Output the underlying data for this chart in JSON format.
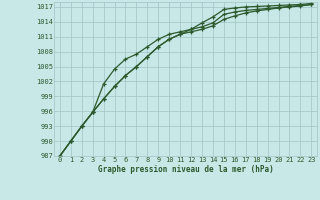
{
  "background_color": "#c8e8e8",
  "grid_color": "#a0c4c4",
  "line_color": "#2d5a2d",
  "marker_color": "#2d5a2d",
  "text_color": "#2d5a2d",
  "xlabel": "Graphe pression niveau de la mer (hPa)",
  "ylim": [
    987,
    1018
  ],
  "xlim": [
    0,
    23
  ],
  "yticks": [
    987,
    990,
    993,
    996,
    999,
    1002,
    1005,
    1008,
    1011,
    1014,
    1017
  ],
  "xticks": [
    0,
    1,
    2,
    3,
    4,
    5,
    6,
    7,
    8,
    9,
    10,
    11,
    12,
    13,
    14,
    15,
    16,
    17,
    18,
    19,
    20,
    21,
    22,
    23
  ],
  "series": [
    [
      987.0,
      990.0,
      993.0,
      995.8,
      998.5,
      1001.0,
      1003.2,
      1005.0,
      1007.0,
      1009.0,
      1010.5,
      1011.5,
      1012.0,
      1012.5,
      1013.2,
      1014.5,
      1015.2,
      1015.8,
      1016.2,
      1016.5,
      1016.8,
      1017.0,
      1017.2,
      1017.5
    ],
    [
      987.0,
      990.0,
      993.0,
      995.8,
      1001.5,
      1004.5,
      1006.5,
      1007.5,
      1009.0,
      1010.5,
      1011.5,
      1012.0,
      1012.5,
      1013.0,
      1013.8,
      1015.5,
      1016.0,
      1016.3,
      1016.5,
      1016.7,
      1016.9,
      1017.1,
      1017.3,
      1017.5
    ],
    [
      987.0,
      990.0,
      993.0,
      995.8,
      998.5,
      1001.0,
      1003.2,
      1005.0,
      1007.0,
      1009.0,
      1010.5,
      1011.5,
      1012.5,
      1013.8,
      1015.0,
      1016.5,
      1016.8,
      1017.0,
      1017.1,
      1017.2,
      1017.3,
      1017.4,
      1017.5,
      1017.7
    ]
  ]
}
